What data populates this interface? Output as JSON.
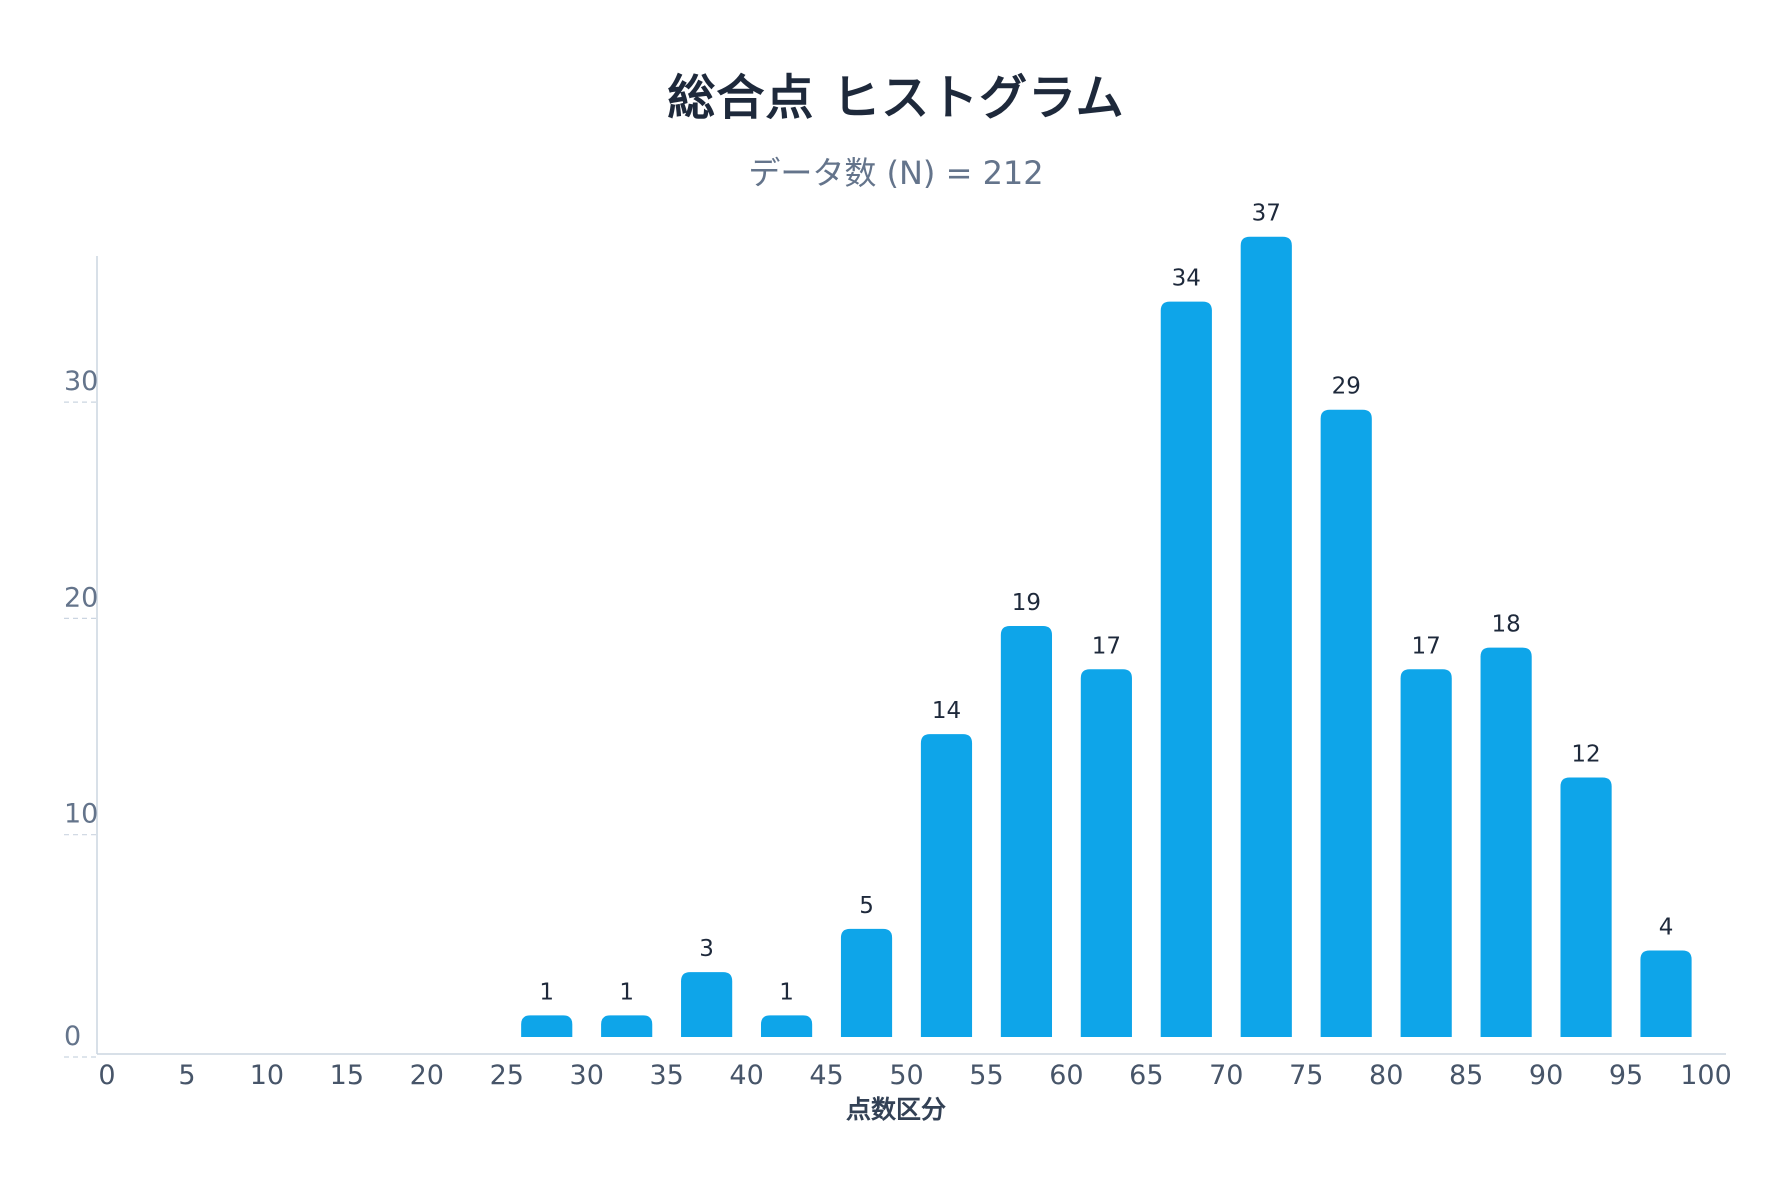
{
  "chart_data": {
    "type": "bar",
    "title": "総合点 ヒストグラム",
    "subtitle": "データ数 (N) = 212",
    "xlabel": "点数区分",
    "ylabel": "",
    "bin_edges": [
      0,
      5,
      10,
      15,
      20,
      25,
      30,
      35,
      40,
      45,
      50,
      55,
      60,
      65,
      70,
      75,
      80,
      85,
      90,
      95,
      100
    ],
    "x_tick_labels": [
      "0",
      "5",
      "10",
      "15",
      "20",
      "25",
      "30",
      "35",
      "40",
      "45",
      "50",
      "55",
      "60",
      "65",
      "70",
      "75",
      "80",
      "85",
      "90",
      "95",
      "100"
    ],
    "categories": [
      "0-5",
      "5-10",
      "10-15",
      "15-20",
      "20-25",
      "25-30",
      "30-35",
      "35-40",
      "40-45",
      "45-50",
      "50-55",
      "55-60",
      "60-65",
      "65-70",
      "70-75",
      "75-80",
      "80-85",
      "85-90",
      "90-95",
      "95-100"
    ],
    "values": [
      0,
      0,
      0,
      0,
      0,
      1,
      1,
      3,
      1,
      5,
      14,
      19,
      17,
      34,
      37,
      29,
      17,
      18,
      12,
      4
    ],
    "y_ticks": [
      0,
      10,
      20,
      30
    ],
    "ylim": [
      0,
      37
    ],
    "xlim": [
      0,
      100
    ],
    "grid": true,
    "bar_color": "#0ea5e9",
    "show_data_labels": true
  }
}
